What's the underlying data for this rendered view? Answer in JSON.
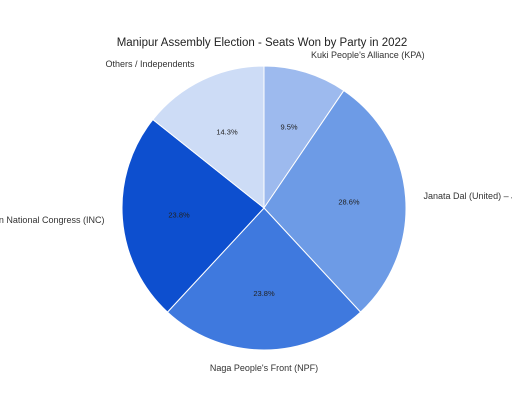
{
  "chart_data": {
    "type": "pie",
    "title": "Manipur Assembly Election - Seats Won by Party in 2022",
    "slices": [
      {
        "label": "Kuki People's Alliance (KPA)",
        "value": 9.5,
        "value_label": "9.5%",
        "color": "#9dbaee"
      },
      {
        "label": "Janata Dal (United) – JD",
        "value": 28.6,
        "value_label": "28.6%",
        "color": "#6d9be6"
      },
      {
        "label": "Naga People's Front (NPF)",
        "value": 23.8,
        "value_label": "23.8%",
        "color": "#3f79de"
      },
      {
        "label": "Indian National Congress (INC)",
        "value": 23.8,
        "value_label": "23.8%",
        "color": "#0d4fcf"
      },
      {
        "label": "Others / Independents",
        "value": 14.3,
        "value_label": "14.3%",
        "color": "#cddcf6"
      }
    ],
    "start": "top",
    "direction": "clockwise",
    "legend": "none"
  }
}
